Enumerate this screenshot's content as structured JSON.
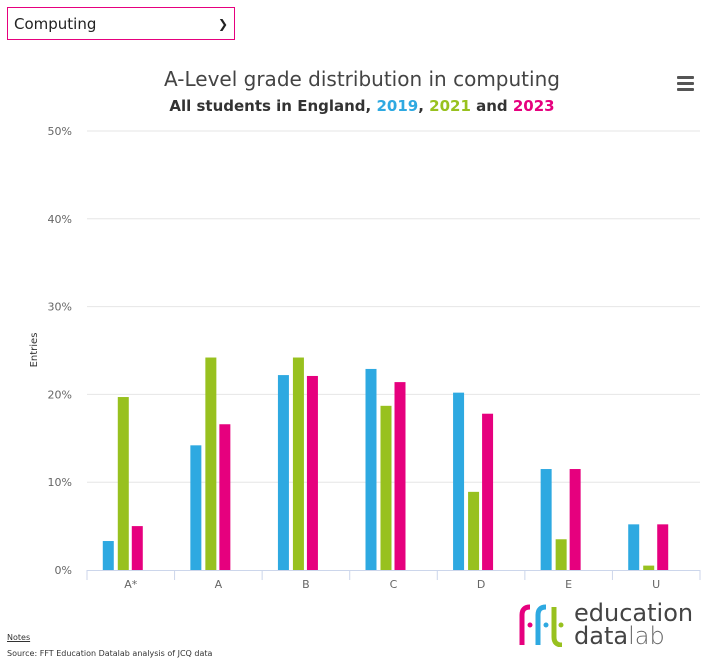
{
  "selector": {
    "value": "Computing"
  },
  "chart_data": {
    "type": "bar",
    "title": "A-Level grade distribution in computing",
    "subtitle": {
      "prefix": "All students in England, ",
      "sep1": ", ",
      "sep2": " and "
    },
    "ylabel": "Entries",
    "xlabel": "",
    "ylim": [
      0,
      50
    ],
    "yticks": [
      "0%",
      "10%",
      "20%",
      "30%",
      "40%",
      "50%"
    ],
    "grid": true,
    "categories": [
      "A*",
      "A",
      "B",
      "C",
      "D",
      "E",
      "U"
    ],
    "series": [
      {
        "name": "2019",
        "color": "#2ea9e1",
        "values": [
          3.3,
          14.2,
          22.2,
          22.9,
          20.2,
          11.5,
          5.2
        ]
      },
      {
        "name": "2021",
        "color": "#98c11f",
        "values": [
          19.7,
          24.2,
          24.2,
          18.7,
          8.9,
          3.5,
          0.5
        ]
      },
      {
        "name": "2023",
        "color": "#e6007e",
        "values": [
          5.0,
          16.6,
          22.1,
          21.4,
          17.8,
          11.5,
          5.2
        ]
      }
    ]
  },
  "footer": {
    "notes": "Notes",
    "source": "Source: FFT Education Datalab analysis of JCQ data"
  },
  "logo": {
    "mark": "fft",
    "line1": "education",
    "line2a": "data",
    "line2b": "lab"
  }
}
